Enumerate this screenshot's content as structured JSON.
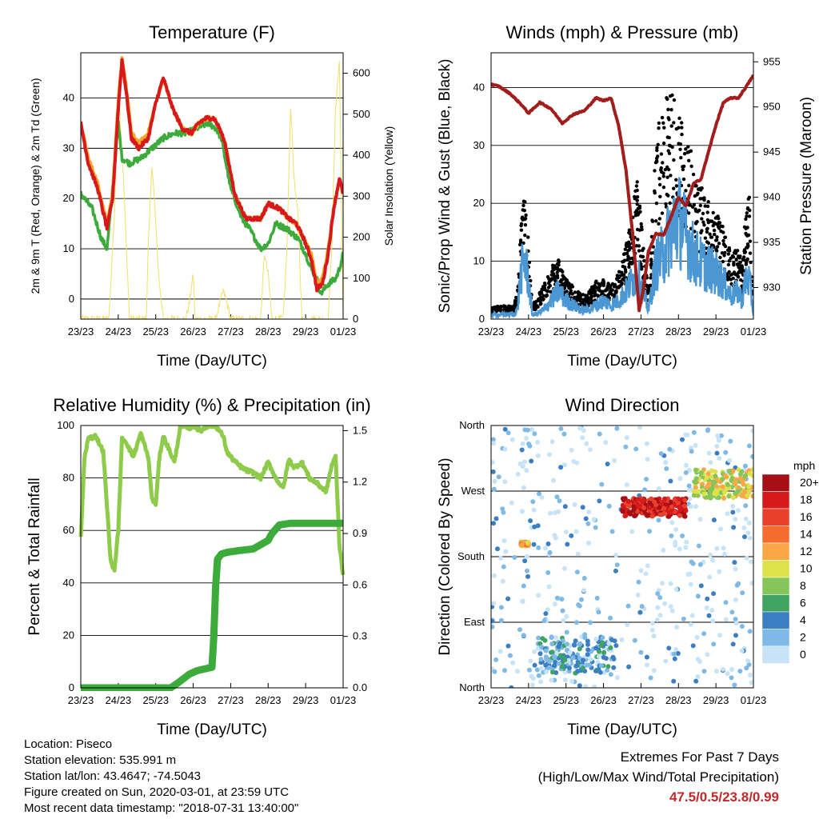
{
  "colors": {
    "t2m": "#d7191c",
    "t9m": "#f5a623",
    "td2m": "#3cab3c",
    "solar": "#f2e06a",
    "wind": "#4a97d4",
    "gust": "#000000",
    "pressure": "#a31d1d",
    "rh": "#8fcb4a",
    "precip": "#3cab3c",
    "extremes": "#c0282a"
  },
  "x_ticks": [
    "23/23",
    "24/23",
    "25/23",
    "26/23",
    "27/23",
    "28/23",
    "29/23",
    "01/23"
  ],
  "panels": {
    "temperature": {
      "title": "Temperature (F)",
      "xlabel": "Time (Day/UTC)",
      "ylabel_left": "2m & 9m T (Red, Orange) & 2m Td (Green)",
      "ylabel_right": "Solar Insolation (Yellow)",
      "yticks_left": [
        "0",
        "10",
        "20",
        "30",
        "40"
      ],
      "yticks_right": [
        "0",
        "100",
        "200",
        "300",
        "400",
        "500",
        "600"
      ]
    },
    "winds": {
      "title": "Winds (mph) & Pressure (mb)",
      "xlabel": "Time (Day/UTC)",
      "ylabel_left": "Sonic/Prop Wind & Gust (Blue, Black)",
      "ylabel_right": "Station Pressure (Maroon)",
      "yticks_left": [
        "0",
        "10",
        "20",
        "30",
        "40"
      ],
      "yticks_right": [
        "930",
        "935",
        "940",
        "945",
        "950",
        "955"
      ]
    },
    "humidity": {
      "title": "Relative Humidity (%) & Precipitation (in)",
      "xlabel": "Time (Day/UTC)",
      "ylabel_left": "Percent & Total Rainfall",
      "yticks_left": [
        "0",
        "20",
        "40",
        "60",
        "80",
        "100"
      ],
      "yticks_right": [
        "0.0",
        "0.3",
        "0.6",
        "0.9",
        "1.2",
        "1.5"
      ]
    },
    "direction": {
      "title": "Wind Direction",
      "xlabel": "Time (Day/UTC)",
      "ylabel_left": "Direction (Colored By Speed)",
      "yticks_left": [
        "North",
        "East",
        "South",
        "West",
        "North"
      ],
      "legend_title": "mph",
      "legend_labels": [
        "20+",
        "18",
        "16",
        "14",
        "12",
        "10",
        "8",
        "6",
        "4",
        "2",
        "0"
      ],
      "legend_colors": [
        "#a50f15",
        "#d7191c",
        "#e8402a",
        "#f46d2e",
        "#fca64a",
        "#dde24a",
        "#85c55a",
        "#3fa460",
        "#3b7fc2",
        "#7fb9e6",
        "#c6e3f7"
      ]
    }
  },
  "info": {
    "location": "Location: Piseco",
    "elevation": "Station elevation: 535.991 m",
    "latlon": "Station lat/lon: 43.4647; -74.5043",
    "created": "Figure created on Sun, 2020-03-01, at 23:59 UTC",
    "recent": "Most recent data timestamp: \"2018-07-31 13:40:00\""
  },
  "extremes": {
    "title": "Extremes For Past 7 Days",
    "subtitle": "(High/Low/Max Wind/Total Precipitation)",
    "values": "47.5/0.5/23.8/0.99"
  },
  "chart_data": [
    {
      "type": "line",
      "title": "Temperature (F)",
      "xlabel": "Time (Day/UTC)",
      "ylabel": "2m & 9m T (Red, Orange) & 2m Td (Green)",
      "y2label": "Solar Insolation (Yellow)",
      "x_range_days": [
        0,
        7
      ],
      "ylim": [
        -4,
        49
      ],
      "y2lim": [
        0,
        650
      ],
      "series": [
        {
          "name": "2m T (Red)",
          "axis": "left",
          "x": [
            0,
            0.2,
            0.45,
            0.7,
            0.85,
            1.0,
            1.1,
            1.2,
            1.35,
            1.55,
            1.8,
            2.0,
            2.2,
            2.45,
            2.7,
            2.95,
            3.15,
            3.35,
            3.55,
            3.7,
            3.85,
            4.1,
            4.4,
            4.6,
            4.8,
            5.0,
            5.3,
            5.55,
            5.75,
            5.95,
            6.15,
            6.3,
            6.45,
            6.6,
            6.75,
            6.9,
            7.0
          ],
          "y": [
            35,
            27,
            22,
            14,
            20,
            38,
            47.5,
            42,
            32,
            30,
            32,
            39,
            44,
            38,
            34,
            33,
            35,
            36,
            36,
            34,
            31,
            21,
            16,
            16,
            16,
            19,
            18,
            16,
            15,
            12,
            8,
            2,
            3,
            9,
            18,
            24,
            21
          ]
        },
        {
          "name": "9m T (Orange)",
          "axis": "left",
          "x": [
            0,
            0.2,
            0.45,
            0.7,
            0.85,
            1.0,
            1.1,
            1.2,
            1.35,
            1.55,
            1.8,
            2.0,
            2.2,
            2.45,
            2.7,
            2.95,
            3.15,
            3.35,
            3.55,
            3.7,
            3.85,
            4.1,
            4.4,
            4.6,
            4.8,
            5.0,
            5.3,
            5.55,
            5.75,
            5.95,
            6.15,
            6.3,
            6.45,
            6.6,
            6.75,
            6.9,
            7.0
          ],
          "y": [
            35,
            28,
            23,
            15,
            21,
            39,
            48,
            43,
            33,
            31,
            33,
            39,
            44,
            38,
            34,
            33,
            35,
            36,
            36,
            34,
            31,
            21,
            16,
            16,
            16,
            19,
            18,
            16,
            15,
            12,
            9,
            3,
            4,
            10,
            18,
            24,
            21
          ]
        },
        {
          "name": "2m Td (Green)",
          "axis": "left",
          "x": [
            0,
            0.3,
            0.55,
            0.7,
            0.85,
            1.0,
            1.1,
            1.3,
            1.6,
            1.9,
            2.2,
            2.5,
            2.8,
            3.1,
            3.4,
            3.6,
            3.75,
            3.85,
            4.0,
            4.3,
            4.5,
            4.8,
            5.0,
            5.2,
            5.5,
            5.8,
            6.0,
            6.15,
            6.3,
            6.4,
            6.6,
            6.8,
            6.9,
            7.0
          ],
          "y": [
            21,
            18,
            12,
            10,
            22,
            35,
            28,
            27,
            28,
            30,
            32,
            33,
            33,
            34,
            35,
            34,
            32,
            28,
            22,
            16,
            14,
            10,
            11,
            15,
            14,
            12,
            9,
            6,
            4,
            1,
            3,
            4,
            6,
            9
          ]
        },
        {
          "name": "Solar Insolation (Yellow)",
          "axis": "right",
          "x": [
            0,
            0.75,
            0.9,
            1.0,
            1.15,
            1.3,
            1.75,
            1.8,
            1.9,
            2.0,
            2.1,
            2.2,
            2.8,
            2.9,
            3.0,
            3.05,
            3.6,
            3.8,
            3.9,
            4.0,
            4.8,
            4.9,
            5.0,
            5.1,
            5.4,
            5.5,
            5.6,
            5.7,
            5.8,
            5.9,
            6.6,
            6.7,
            6.8,
            6.9,
            7.0
          ],
          "y": [
            0,
            0,
            260,
            580,
            320,
            0,
            0,
            180,
            380,
            230,
            80,
            0,
            0,
            40,
            110,
            0,
            0,
            70,
            40,
            0,
            0,
            160,
            110,
            0,
            0,
            170,
            520,
            330,
            250,
            0,
            0,
            180,
            520,
            630,
            0
          ]
        }
      ]
    },
    {
      "type": "line",
      "title": "Winds (mph) & Pressure (mb)",
      "xlabel": "Time (Day/UTC)",
      "ylabel": "Sonic/Prop Wind & Gust (Blue, Black)",
      "y2label": "Station Pressure (Maroon)",
      "x_range_days": [
        0,
        7
      ],
      "ylim": [
        0,
        46
      ],
      "y2lim": [
        926.5,
        956
      ],
      "series": [
        {
          "name": "Sonic/Prop Wind (Blue)",
          "axis": "left",
          "x": [
            0,
            0.6,
            0.7,
            0.8,
            0.9,
            1.0,
            1.1,
            1.2,
            1.4,
            1.6,
            1.8,
            2.0,
            2.2,
            2.4,
            2.6,
            2.8,
            3.0,
            3.2,
            3.4,
            3.6,
            3.75,
            3.9,
            4.0,
            4.2,
            4.4,
            4.6,
            4.8,
            5.0,
            5.2,
            5.4,
            5.6,
            5.8,
            6.0,
            6.2,
            6.4,
            6.6,
            6.7,
            6.8,
            6.9,
            7.0
          ],
          "y": [
            1,
            1,
            2,
            10,
            13,
            8,
            1,
            1,
            2,
            4,
            6,
            4,
            3,
            2,
            2,
            3,
            4,
            3,
            4,
            6,
            8,
            10,
            7,
            2,
            12,
            14,
            19,
            22,
            18,
            14,
            12,
            11,
            10,
            8,
            5,
            6,
            4,
            9,
            8,
            1
          ]
        },
        {
          "name": "Gust (Black)",
          "axis": "left",
          "x": [
            0,
            0.6,
            0.7,
            0.8,
            0.9,
            1.0,
            1.1,
            1.2,
            1.4,
            1.6,
            1.8,
            2.0,
            2.2,
            2.4,
            2.6,
            2.8,
            3.0,
            3.2,
            3.4,
            3.6,
            3.75,
            3.9,
            4.0,
            4.2,
            4.4,
            4.6,
            4.8,
            5.0,
            5.2,
            5.4,
            5.6,
            5.8,
            6.0,
            6.2,
            6.4,
            6.6,
            6.7,
            6.8,
            6.9,
            7.0
          ],
          "y": [
            2,
            2,
            4,
            15,
            19,
            12,
            2,
            3,
            5,
            8,
            9,
            6,
            5,
            4,
            4,
            6,
            6,
            5,
            7,
            11,
            15,
            22,
            15,
            4,
            28,
            32,
            35,
            31,
            28,
            24,
            20,
            18,
            16,
            14,
            10,
            11,
            8,
            17,
            21,
            3
          ]
        },
        {
          "name": "Station Pressure (Maroon)",
          "axis": "right",
          "x": [
            0,
            0.2,
            0.5,
            0.8,
            1.0,
            1.3,
            1.6,
            1.9,
            2.2,
            2.5,
            2.8,
            3.0,
            3.2,
            3.4,
            3.6,
            3.8,
            3.95,
            4.05,
            4.2,
            4.4,
            4.6,
            4.8,
            5.0,
            5.2,
            5.4,
            5.6,
            5.8,
            6.0,
            6.2,
            6.4,
            6.6,
            6.8,
            7.0
          ],
          "y": [
            952.5,
            952.3,
            951.5,
            950.3,
            949.3,
            950.5,
            949.8,
            948.2,
            949.2,
            949.6,
            951.0,
            950.7,
            951.0,
            948.0,
            943.0,
            935.0,
            927.5,
            929.5,
            934.0,
            936.0,
            935.8,
            937.8,
            940.0,
            939.0,
            941.5,
            942.0,
            945.0,
            948.0,
            950.5,
            951.0,
            951.0,
            952.2,
            953.5
          ]
        }
      ]
    },
    {
      "type": "line",
      "title": "Relative Humidity (%) & Precipitation (in)",
      "xlabel": "Time (Day/UTC)",
      "ylabel": "Percent & Total Rainfall",
      "x_range_days": [
        0,
        7
      ],
      "ylim": [
        0,
        100
      ],
      "y2lim": [
        0,
        1.53
      ],
      "series": [
        {
          "name": "Relative Humidity",
          "axis": "left",
          "x": [
            0,
            0.1,
            0.2,
            0.4,
            0.6,
            0.8,
            0.9,
            1.0,
            1.1,
            1.2,
            1.4,
            1.6,
            1.8,
            1.9,
            2.0,
            2.1,
            2.2,
            2.35,
            2.5,
            2.65,
            2.8,
            2.9,
            3.0,
            3.2,
            3.4,
            3.6,
            3.8,
            3.9,
            4.0,
            4.2,
            4.4,
            4.6,
            4.8,
            5.0,
            5.2,
            5.4,
            5.55,
            5.7,
            5.9,
            6.1,
            6.3,
            6.45,
            6.55,
            6.7,
            6.8,
            6.9,
            7.0
          ],
          "y": [
            57,
            88,
            95,
            96,
            90,
            48,
            45,
            60,
            95,
            94,
            88,
            97,
            88,
            72,
            70,
            88,
            96,
            91,
            86,
            99,
            100,
            99,
            100,
            98,
            100,
            100,
            96,
            90,
            88,
            85,
            83,
            82,
            80,
            86,
            80,
            76,
            87,
            84,
            86,
            80,
            78,
            76,
            75,
            85,
            88,
            55,
            43
          ]
        },
        {
          "name": "Total Precipitation",
          "axis": "right",
          "x": [
            0,
            1.0,
            2.0,
            2.4,
            2.6,
            2.9,
            3.1,
            3.3,
            3.5,
            3.55,
            3.6,
            3.65,
            3.75,
            3.9,
            4.2,
            4.6,
            5.0,
            5.1,
            5.3,
            5.6,
            6.0,
            6.5,
            7.0
          ],
          "y": [
            0,
            0,
            0,
            0,
            0.03,
            0.08,
            0.1,
            0.11,
            0.12,
            0.3,
            0.6,
            0.75,
            0.78,
            0.79,
            0.8,
            0.81,
            0.86,
            0.9,
            0.95,
            0.96,
            0.96,
            0.96,
            0.96
          ]
        }
      ]
    },
    {
      "type": "scatter",
      "title": "Wind Direction",
      "xlabel": "Time (Day/UTC)",
      "ylabel": "Direction (Colored By Speed)",
      "x_range_days": [
        0,
        7
      ],
      "ylim": [
        0,
        360
      ],
      "yticks": [
        "North",
        "East",
        "South",
        "West",
        "North"
      ],
      "colorbar": {
        "title": "mph",
        "labels": [
          "20+",
          "18",
          "16",
          "14",
          "12",
          "10",
          "8",
          "6",
          "4",
          "2",
          "0"
        ]
      },
      "clusters": [
        {
          "x": [
            0.8,
            1.0
          ],
          "y": [
            195,
            200
          ],
          "speed": 12
        },
        {
          "x": [
            3.5,
            5.2
          ],
          "y": [
            235,
            260
          ],
          "speed": 18
        },
        {
          "x": [
            1.2,
            3.3
          ],
          "y": [
            20,
            70
          ],
          "speed": 3
        },
        {
          "x": [
            5.4,
            7.0
          ],
          "y": [
            260,
            300
          ],
          "speed": 10
        },
        {
          "x": [
            0,
            7.0
          ],
          "y": [
            0,
            360
          ],
          "speed": 1
        }
      ]
    }
  ]
}
